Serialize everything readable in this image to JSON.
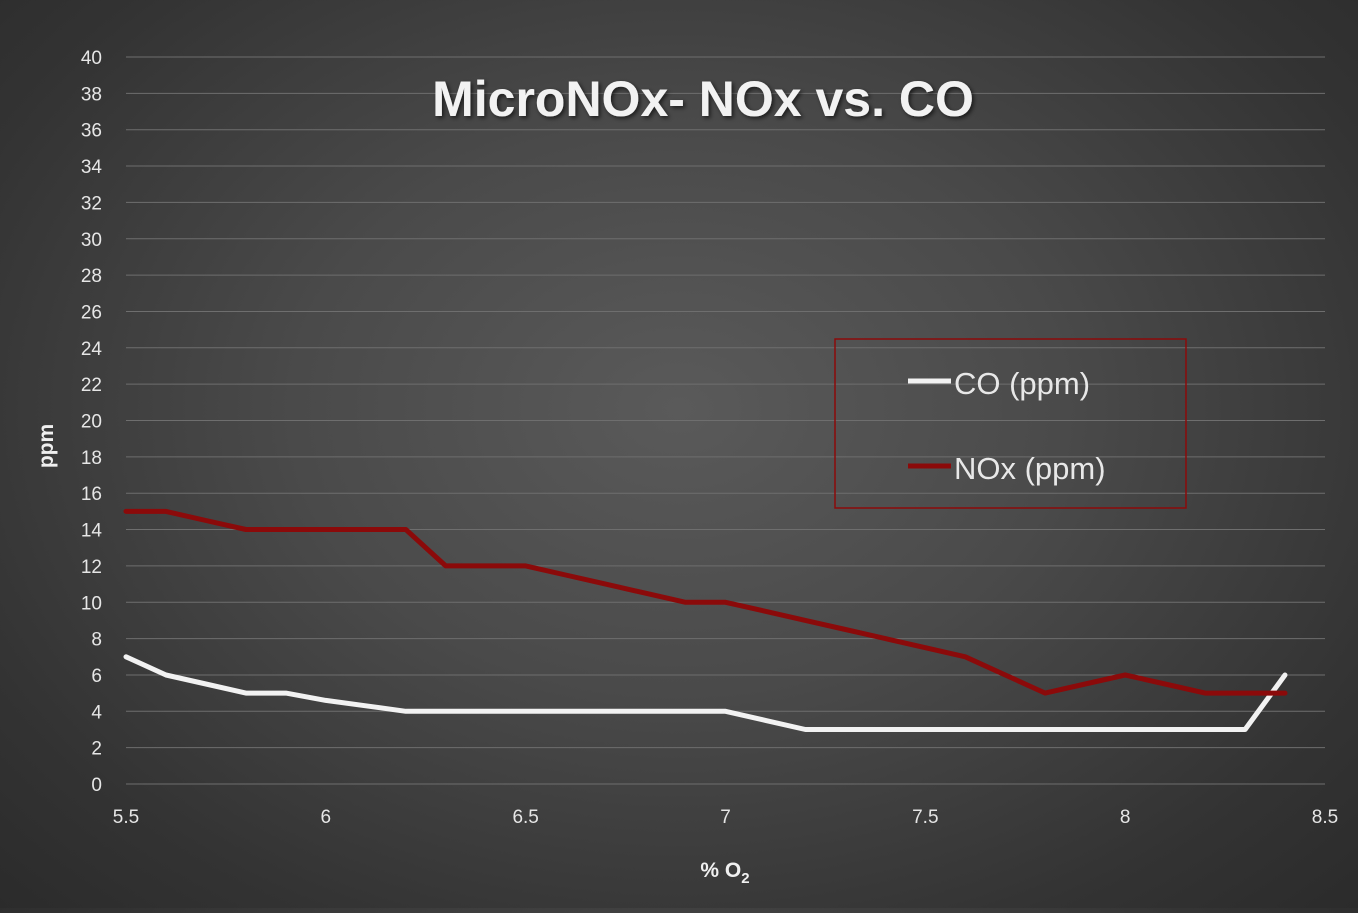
{
  "chart_data": {
    "type": "line",
    "title": "MicroNOx- NOx vs. CO",
    "xlabel": "% O",
    "xlabel_subscript": "2",
    "ylabel": "ppm",
    "xlim": [
      5.5,
      8.5
    ],
    "ylim": [
      0,
      40
    ],
    "x_ticks": [
      "5.5",
      "6",
      "6.5",
      "7",
      "7.5",
      "8",
      "8.5"
    ],
    "y_ticks": [
      "0",
      "2",
      "4",
      "6",
      "8",
      "10",
      "12",
      "14",
      "16",
      "18",
      "20",
      "22",
      "24",
      "26",
      "28",
      "30",
      "32",
      "34",
      "36",
      "38",
      "40"
    ],
    "grid": true,
    "legend_position": "right",
    "series": [
      {
        "name": "CO (ppm)",
        "color": "#f2f2f2",
        "x": [
          5.5,
          5.6,
          5.7,
          5.8,
          5.9,
          6.0,
          6.1,
          6.2,
          6.3,
          6.4,
          6.5,
          6.6,
          6.7,
          6.8,
          6.9,
          7.0,
          7.1,
          7.2,
          7.3,
          7.4,
          7.5,
          7.6,
          7.7,
          7.8,
          7.9,
          8.0,
          8.1,
          8.2,
          8.3,
          8.4
        ],
        "y": [
          7,
          6,
          5.5,
          5,
          5,
          4.6,
          4.3,
          4,
          4,
          4,
          4,
          4,
          4,
          4,
          4,
          4,
          3.5,
          3,
          3,
          3,
          3,
          3,
          3,
          3,
          3,
          3,
          3,
          3,
          3,
          6
        ]
      },
      {
        "name": "NOx (ppm)",
        "color": "#8b0a0a",
        "x": [
          5.5,
          5.6,
          5.7,
          5.8,
          5.9,
          6.0,
          6.1,
          6.2,
          6.3,
          6.4,
          6.5,
          6.6,
          6.7,
          6.8,
          6.9,
          7.0,
          7.1,
          7.2,
          7.3,
          7.4,
          7.5,
          7.6,
          7.7,
          7.8,
          7.9,
          8.0,
          8.1,
          8.2,
          8.3,
          8.4
        ],
        "y": [
          15,
          15,
          14.5,
          14,
          14,
          14,
          14,
          14,
          12,
          12,
          12,
          11.5,
          11,
          10.5,
          10,
          10,
          9.5,
          9,
          8.5,
          8,
          7.5,
          7,
          6,
          5,
          5.5,
          6,
          5.5,
          5,
          5,
          5
        ]
      }
    ]
  }
}
